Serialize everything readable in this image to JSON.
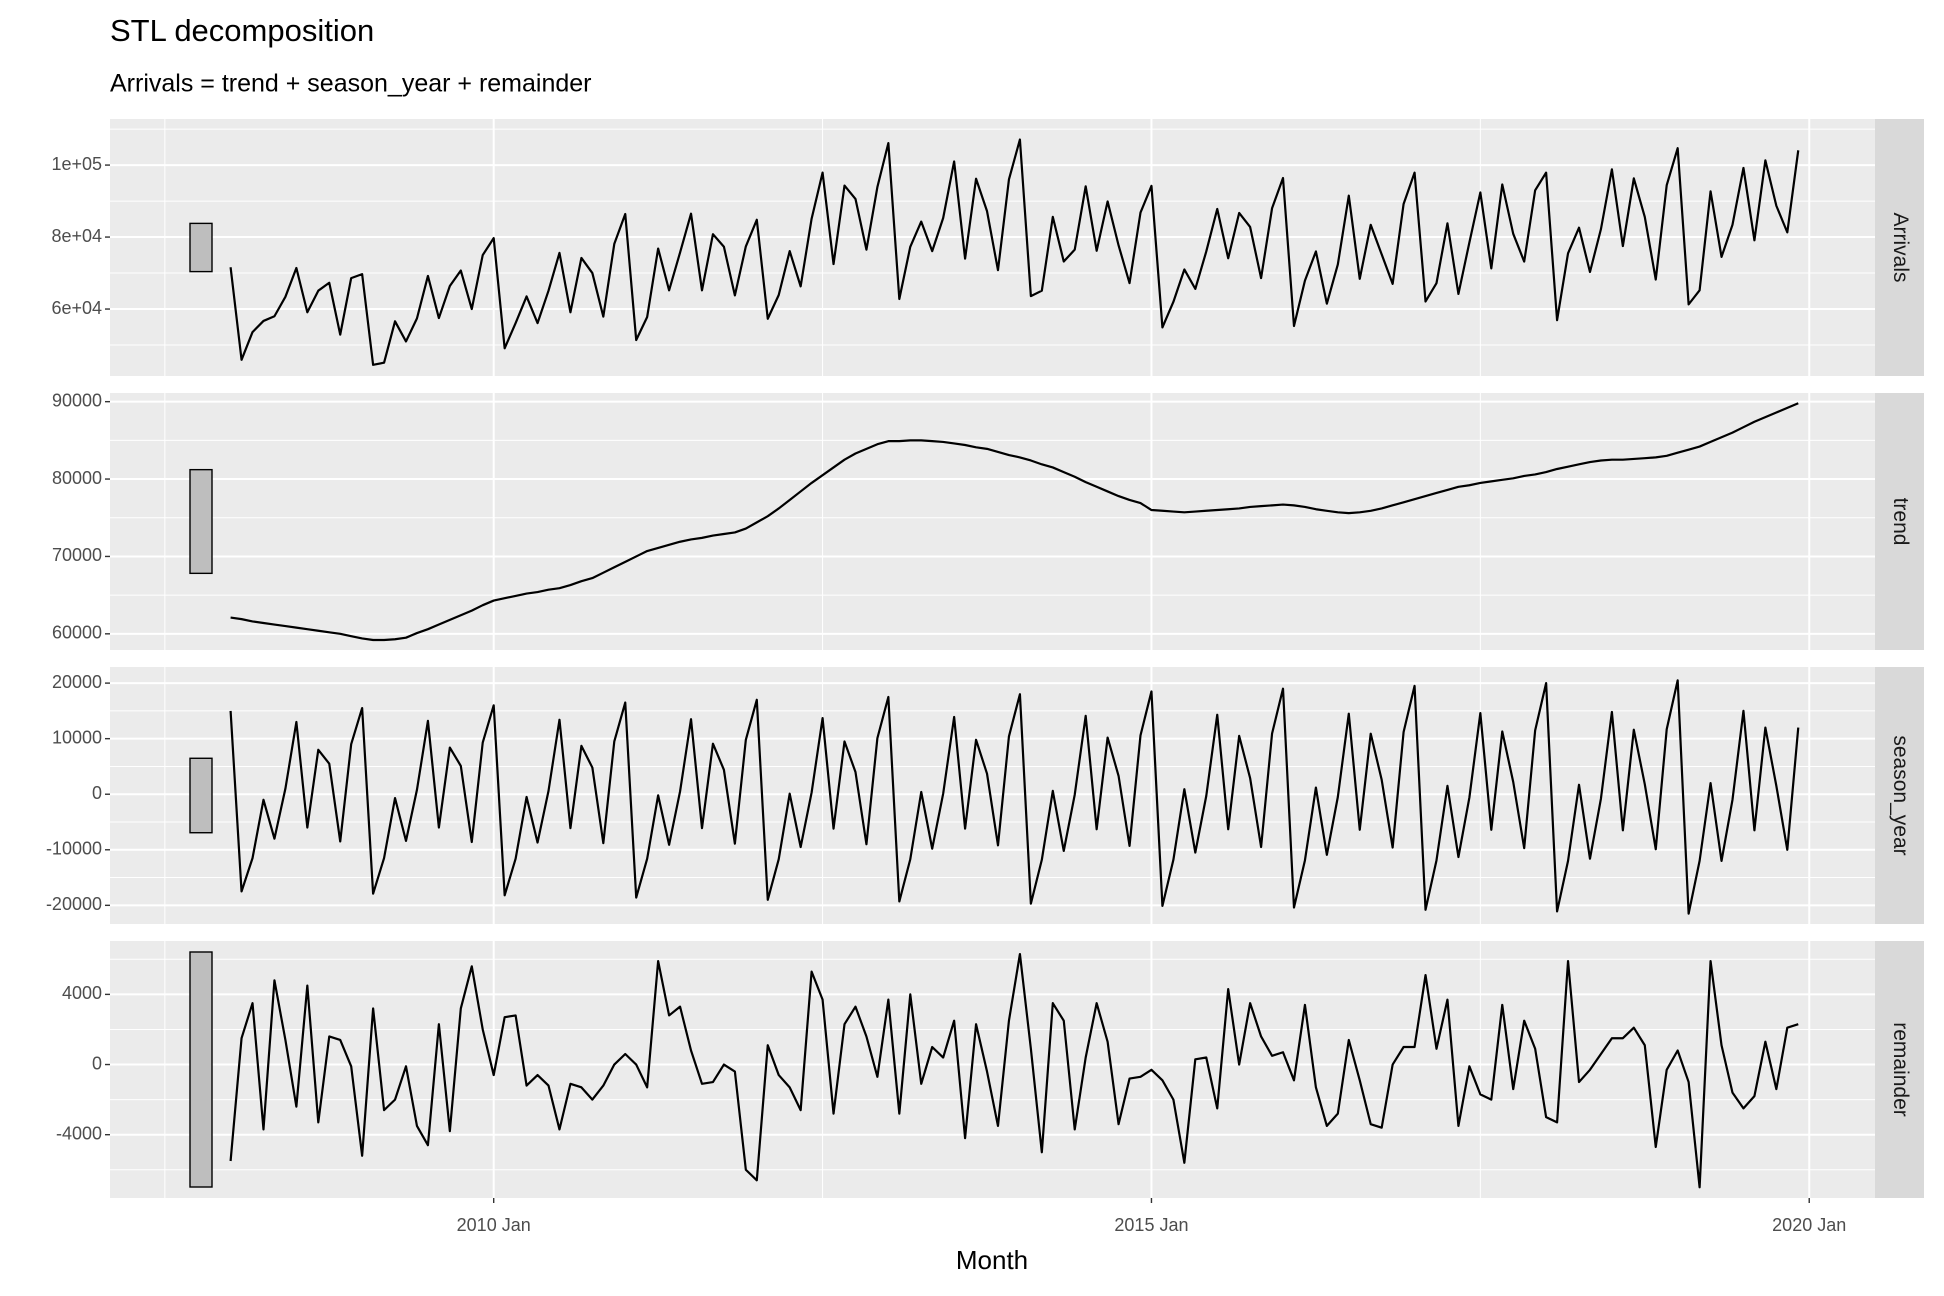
{
  "chart_data": {
    "type": "line",
    "title": "STL decomposition",
    "subtitle": "Arrivals = trend + season_year + remainder",
    "x_label": "Month",
    "color": "#000000",
    "grid": true,
    "range_bar": 13400,
    "x": [
      "2008 Jan",
      "2008 Feb",
      "2008 Mar",
      "2008 Apr",
      "2008 May",
      "2008 Jun",
      "2008 Jul",
      "2008 Aug",
      "2008 Sep",
      "2008 Oct",
      "2008 Nov",
      "2008 Dec",
      "2009 Jan",
      "2009 Feb",
      "2009 Mar",
      "2009 Apr",
      "2009 May",
      "2009 Jun",
      "2009 Jul",
      "2009 Aug",
      "2009 Sep",
      "2009 Oct",
      "2009 Nov",
      "2009 Dec",
      "2010 Jan",
      "2010 Feb",
      "2010 Mar",
      "2010 Apr",
      "2010 May",
      "2010 Jun",
      "2010 Jul",
      "2010 Aug",
      "2010 Sep",
      "2010 Oct",
      "2010 Nov",
      "2010 Dec",
      "2011 Jan",
      "2011 Feb",
      "2011 Mar",
      "2011 Apr",
      "2011 May",
      "2011 Jun",
      "2011 Jul",
      "2011 Aug",
      "2011 Sep",
      "2011 Oct",
      "2011 Nov",
      "2011 Dec",
      "2012 Jan",
      "2012 Feb",
      "2012 Mar",
      "2012 Apr",
      "2012 May",
      "2012 Jun",
      "2012 Jul",
      "2012 Aug",
      "2012 Sep",
      "2012 Oct",
      "2012 Nov",
      "2012 Dec",
      "2013 Jan",
      "2013 Feb",
      "2013 Mar",
      "2013 Apr",
      "2013 May",
      "2013 Jun",
      "2013 Jul",
      "2013 Aug",
      "2013 Sep",
      "2013 Oct",
      "2013 Nov",
      "2013 Dec",
      "2014 Jan",
      "2014 Feb",
      "2014 Mar",
      "2014 Apr",
      "2014 May",
      "2014 Jun",
      "2014 Jul",
      "2014 Aug",
      "2014 Sep",
      "2014 Oct",
      "2014 Nov",
      "2014 Dec",
      "2015 Jan",
      "2015 Feb",
      "2015 Mar",
      "2015 Apr",
      "2015 May",
      "2015 Jun",
      "2015 Jul",
      "2015 Aug",
      "2015 Sep",
      "2015 Oct",
      "2015 Nov",
      "2015 Dec",
      "2016 Jan",
      "2016 Feb",
      "2016 Mar",
      "2016 Apr",
      "2016 May",
      "2016 Jun",
      "2016 Jul",
      "2016 Aug",
      "2016 Sep",
      "2016 Oct",
      "2016 Nov",
      "2016 Dec",
      "2017 Jan",
      "2017 Feb",
      "2017 Mar",
      "2017 Apr",
      "2017 May",
      "2017 Jun",
      "2017 Jul",
      "2017 Aug",
      "2017 Sep",
      "2017 Oct",
      "2017 Nov",
      "2017 Dec",
      "2018 Jan",
      "2018 Feb",
      "2018 Mar",
      "2018 Apr",
      "2018 May",
      "2018 Jun",
      "2018 Jul",
      "2018 Aug",
      "2018 Sep",
      "2018 Oct",
      "2018 Nov",
      "2018 Dec",
      "2019 Jan",
      "2019 Feb",
      "2019 Mar",
      "2019 Apr",
      "2019 May",
      "2019 Jun",
      "2019 Jul",
      "2019 Aug",
      "2019 Sep",
      "2019 Oct",
      "2019 Nov",
      "2019 Dec"
    ],
    "xlim": [
      "2007 Feb",
      "2020 Jul"
    ],
    "xticks": [
      "2010 Jan",
      "2015 Jan",
      "2020 Jan"
    ],
    "x_minor_ticks": [
      "2007 Jul",
      "2012 Jul",
      "2017 Jul"
    ],
    "series": [
      {
        "name": "Arrivals",
        "ylim": [
          41400,
          112800
        ],
        "yticks": [
          {
            "value": 60000,
            "label": "6e+04"
          },
          {
            "value": 80000,
            "label": "8e+04"
          },
          {
            "value": 100000,
            "label": "1e+05"
          }
        ],
        "y_minor_ticks": [
          50000,
          70000,
          90000,
          110000
        ],
        "values": [
          71600,
          45900,
          53600,
          56700,
          58000,
          63400,
          71400,
          59100,
          65100,
          67300,
          52900,
          68600,
          69700,
          44500,
          45100,
          56600,
          51000,
          57400,
          69200,
          57500,
          66400,
          70700,
          60000,
          75000,
          79700,
          49100,
          56100,
          63500,
          56100,
          65100,
          75600,
          59100,
          74200,
          70000,
          57900,
          78100,
          86400,
          51400,
          57800,
          76800,
          65200,
          75700,
          86500,
          65200,
          80800,
          77300,
          63800,
          77400,
          84800,
          57300,
          63900,
          76100,
          66300,
          85100,
          97900,
          72500,
          94300,
          90600,
          76500,
          93900,
          106100,
          62800,
          77300,
          84300,
          76100,
          85300,
          101000,
          74000,
          96200,
          87200,
          70800,
          96000,
          107100,
          63600,
          65100,
          85600,
          73200,
          76500,
          94100,
          76200,
          89900,
          77700,
          67200,
          86800,
          94200,
          54900,
          62000,
          71000,
          65600,
          76000,
          87800,
          74100,
          86700,
          82800,
          68600,
          88000,
          96400,
          55300,
          67900,
          76000,
          61500,
          72400,
          91500,
          68400,
          83400,
          75200,
          67000,
          89200,
          97900,
          62100,
          67200,
          83800,
          64200,
          78500,
          92400,
          71300,
          94600,
          80900,
          73200,
          93000,
          97900,
          56900,
          75500,
          82600,
          70300,
          82200,
          98800,
          77500,
          96300,
          85600,
          68200,
          94400,
          104700,
          61300,
          65200,
          92700,
          74500,
          83400,
          99200,
          79100,
          101300,
          88700,
          81300,
          104100
        ]
      },
      {
        "name": "trend",
        "ylim": [
          57910,
          91120
        ],
        "yticks": [
          60000,
          70000,
          80000,
          90000
        ],
        "y_minor_ticks": [
          65000,
          75000,
          85000
        ],
        "values": [
          62100,
          61900,
          61600,
          61400,
          61200,
          61000,
          60800,
          60600,
          60400,
          60200,
          60000,
          59700,
          59400,
          59200,
          59200,
          59300,
          59500,
          60100,
          60600,
          61200,
          61800,
          62400,
          63000,
          63700,
          64300,
          64600,
          64900,
          65200,
          65400,
          65700,
          65900,
          66300,
          66800,
          67200,
          67900,
          68600,
          69300,
          70000,
          70700,
          71100,
          71500,
          71900,
          72200,
          72400,
          72700,
          72900,
          73100,
          73600,
          74400,
          75200,
          76200,
          77300,
          78400,
          79500,
          80500,
          81500,
          82500,
          83300,
          83900,
          84500,
          84900,
          84900,
          85000,
          85000,
          84900,
          84800,
          84600,
          84400,
          84100,
          83900,
          83500,
          83100,
          82800,
          82400,
          81900,
          81500,
          80900,
          80300,
          79600,
          79000,
          78400,
          77800,
          77300,
          76900,
          76000,
          75900,
          75800,
          75700,
          75800,
          75900,
          76000,
          76100,
          76200,
          76400,
          76500,
          76600,
          76700,
          76600,
          76400,
          76100,
          75900,
          75700,
          75600,
          75700,
          75900,
          76200,
          76600,
          77000,
          77400,
          77800,
          78200,
          78600,
          79000,
          79200,
          79500,
          79700,
          79900,
          80100,
          80400,
          80600,
          80900,
          81300,
          81600,
          81900,
          82200,
          82400,
          82500,
          82500,
          82600,
          82700,
          82800,
          83000,
          83400,
          83800,
          84200,
          84800,
          85400,
          86000,
          86700,
          87400,
          88000,
          88600,
          89200,
          89800
        ]
      },
      {
        "name": "season_year",
        "ylim": [
          -23360,
          22900
        ],
        "yticks": [
          -20000,
          -10000,
          0,
          10000,
          20000
        ],
        "y_minor_ticks": [
          -15000,
          -5000,
          5000,
          15000
        ],
        "values": [
          15000,
          -17500,
          -11500,
          -1000,
          -8000,
          1000,
          13000,
          -6000,
          8000,
          5500,
          -8500,
          9000,
          15500,
          -17900,
          -11500,
          -700,
          -8400,
          800,
          13200,
          -6000,
          8400,
          5100,
          -8600,
          9300,
          16000,
          -18200,
          -11600,
          -500,
          -8700,
          600,
          13400,
          -6100,
          8700,
          4800,
          -8800,
          9500,
          16500,
          -18600,
          -11600,
          -200,
          -9100,
          500,
          13500,
          -6100,
          9100,
          4400,
          -8900,
          9800,
          17000,
          -19000,
          -11700,
          100,
          -9500,
          300,
          13700,
          -6200,
          9500,
          4000,
          -9000,
          10100,
          17500,
          -19300,
          -11700,
          400,
          -9800,
          100,
          13900,
          -6200,
          9800,
          3700,
          -9200,
          10400,
          18000,
          -19700,
          -11800,
          600,
          -10200,
          -100,
          14100,
          -6300,
          10200,
          3300,
          -9300,
          10600,
          18500,
          -20100,
          -11800,
          900,
          -10500,
          -300,
          14300,
          -6300,
          10500,
          2900,
          -9500,
          10900,
          19000,
          -20400,
          -11900,
          1200,
          -10900,
          -500,
          14500,
          -6400,
          10900,
          2600,
          -9600,
          11200,
          19500,
          -20800,
          -11900,
          1500,
          -11300,
          -600,
          14600,
          -6400,
          11300,
          2200,
          -9700,
          11500,
          20000,
          -21100,
          -12000,
          1700,
          -11600,
          -800,
          14800,
          -6500,
          11600,
          1800,
          -9900,
          11700,
          20500,
          -21500,
          -12000,
          2000,
          -12000,
          -1000,
          15000,
          -6500,
          12000,
          1500,
          -10000,
          12000
        ]
      },
      {
        "name": "remainder",
        "ylim": [
          -7610,
          7044
        ],
        "yticks": [
          -4000,
          0,
          4000
        ],
        "y_minor_ticks": [
          -6000,
          -2000,
          2000,
          6000
        ],
        "values": [
          -5500,
          1500,
          3500,
          -3700,
          4800,
          1400,
          -2400,
          4500,
          -3300,
          1600,
          1400,
          -100,
          -5200,
          3200,
          -2600,
          -2000,
          -100,
          -3500,
          -4600,
          2300,
          -3800,
          3200,
          5600,
          2000,
          -600,
          2700,
          2800,
          -1200,
          -600,
          -1200,
          -3700,
          -1100,
          -1300,
          -2000,
          -1200,
          0,
          600,
          0,
          -1300,
          5900,
          2800,
          3300,
          800,
          -1100,
          -1000,
          0,
          -400,
          -6000,
          -6600,
          1100,
          -600,
          -1300,
          -2600,
          5300,
          3700,
          -2800,
          2300,
          3300,
          1600,
          -700,
          3700,
          -2800,
          4000,
          -1100,
          1000,
          400,
          2500,
          -4200,
          2300,
          -400,
          -3500,
          2500,
          6300,
          900,
          -5000,
          3500,
          2500,
          -3700,
          400,
          3500,
          1300,
          -3400,
          -800,
          -700,
          -300,
          -900,
          -2000,
          -5600,
          300,
          400,
          -2500,
          4300,
          0,
          3500,
          1600,
          500,
          700,
          -900,
          3400,
          -1300,
          -3500,
          -2800,
          1400,
          -900,
          -3400,
          -3600,
          0,
          1000,
          1000,
          5100,
          900,
          3700,
          -3500,
          -100,
          -1700,
          -2000,
          3400,
          -1400,
          2500,
          900,
          -3000,
          -3300,
          5900,
          -1000,
          -300,
          600,
          1500,
          1500,
          2100,
          1100,
          -4700,
          -300,
          800,
          -1000,
          -7000,
          5900,
          1100,
          -1600,
          -2500,
          -1800,
          1300,
          -1400,
          2100,
          2300
        ]
      }
    ]
  }
}
